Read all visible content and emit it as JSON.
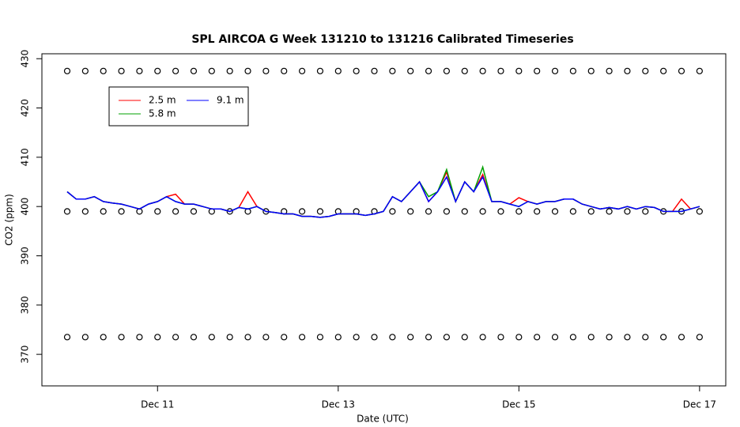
{
  "chart_data": {
    "type": "line",
    "title": "SPL AIRCOA G  Week 131210 to 131216  Calibrated Timeseries",
    "xlabel": "Date (UTC)",
    "ylabel": "CO2 (ppm)",
    "xlim": [
      9.72,
      17.29
    ],
    "ylim": [
      363.6,
      431
    ],
    "xticks": [
      {
        "value": 11,
        "label": "Dec 11"
      },
      {
        "value": 13,
        "label": "Dec 13"
      },
      {
        "value": 15,
        "label": "Dec 15"
      },
      {
        "value": 17,
        "label": "Dec 17"
      }
    ],
    "yticks": [
      370,
      380,
      390,
      400,
      410,
      420,
      430
    ],
    "x": [
      10.0,
      10.1,
      10.2,
      10.3,
      10.4,
      10.5,
      10.6,
      10.7,
      10.8,
      10.9,
      11.0,
      11.1,
      11.2,
      11.3,
      11.4,
      11.5,
      11.6,
      11.7,
      11.8,
      11.9,
      12.0,
      12.1,
      12.2,
      12.3,
      12.4,
      12.5,
      12.6,
      12.7,
      12.8,
      12.9,
      13.0,
      13.1,
      13.2,
      13.3,
      13.4,
      13.5,
      13.6,
      13.7,
      13.8,
      13.9,
      14.0,
      14.1,
      14.2,
      14.3,
      14.4,
      14.5,
      14.6,
      14.7,
      14.8,
      14.9,
      15.0,
      15.1,
      15.2,
      15.3,
      15.4,
      15.5,
      15.6,
      15.7,
      15.8,
      15.9,
      16.0,
      16.1,
      16.2,
      16.3,
      16.4,
      16.5,
      16.6,
      16.7,
      16.8,
      16.9,
      17.0
    ],
    "series": [
      {
        "name": "2.5 m",
        "color": "#ff0000",
        "values": [
          403,
          401.5,
          401.5,
          402,
          401,
          400.7,
          400.5,
          400,
          399.5,
          400.5,
          401,
          402,
          402.5,
          400.5,
          400.5,
          400,
          399.5,
          399.5,
          399,
          399.8,
          403,
          400,
          399,
          398.8,
          398.5,
          398.5,
          398,
          398,
          397.8,
          398,
          398.5,
          398.5,
          398.5,
          398.2,
          398.5,
          399,
          402,
          401,
          403,
          405,
          401,
          403,
          407,
          401,
          405,
          403,
          406.5,
          401,
          401,
          400.5,
          401.8,
          401,
          400.5,
          401,
          401,
          401.5,
          401.5,
          400.5,
          400,
          399.5,
          399.8,
          399.5,
          400,
          399.5,
          400,
          399.8,
          399,
          399,
          401.5,
          399.5,
          400
        ]
      },
      {
        "name": "5.8 m",
        "color": "#00a000",
        "values": [
          403,
          401.5,
          401.5,
          402,
          401,
          400.7,
          400.5,
          400,
          399.5,
          400.5,
          401,
          402,
          401,
          400.5,
          400.5,
          400,
          399.5,
          399.5,
          399,
          399.8,
          399.5,
          400,
          399,
          398.8,
          398.5,
          398.5,
          398,
          398,
          397.8,
          398,
          398.5,
          398.5,
          398.5,
          398.2,
          398.5,
          399,
          402,
          401,
          403,
          405,
          402,
          403,
          407.5,
          401,
          405,
          403,
          408,
          401,
          401,
          400.5,
          400,
          401,
          400.5,
          401,
          401,
          401.5,
          401.5,
          400.5,
          400,
          399.5,
          399.8,
          399.5,
          400,
          399.5,
          400,
          399.8,
          399,
          399,
          399,
          399.5,
          400
        ]
      },
      {
        "name": "9.1 m",
        "color": "#0000ff",
        "values": [
          403,
          401.5,
          401.5,
          402,
          401,
          400.7,
          400.5,
          400,
          399.5,
          400.5,
          401,
          402,
          401,
          400.5,
          400.5,
          400,
          399.5,
          399.5,
          399,
          399.8,
          399.5,
          400,
          399,
          398.8,
          398.5,
          398.5,
          398,
          398,
          397.8,
          398,
          398.5,
          398.5,
          398.5,
          398.2,
          398.5,
          399,
          402,
          401,
          403,
          405,
          401,
          403,
          406,
          401,
          405,
          403,
          406,
          401,
          401,
          400.5,
          400,
          401,
          400.5,
          401,
          401,
          401.5,
          401.5,
          400.5,
          400,
          399.5,
          399.8,
          399.5,
          400,
          399.5,
          400,
          399.8,
          399,
          399,
          399,
          399.5,
          400
        ]
      }
    ],
    "calibration_x": [
      10.0,
      10.2,
      10.4,
      10.6,
      10.8,
      11.0,
      11.2,
      11.4,
      11.6,
      11.8,
      12.0,
      12.2,
      12.4,
      12.6,
      12.8,
      13.0,
      13.2,
      13.4,
      13.6,
      13.8,
      14.0,
      14.2,
      14.4,
      14.6,
      14.8,
      15.0,
      15.2,
      15.4,
      15.6,
      15.8,
      16.0,
      16.2,
      16.4,
      16.6,
      16.8,
      17.0
    ],
    "calibration": [
      {
        "values": [
          427.5,
          427.5,
          427.5,
          427.5,
          427.5,
          427.5,
          427.5,
          427.5,
          427.5,
          427.5,
          427.5,
          427.5,
          427.5,
          427.5,
          427.5,
          427.5,
          427.5,
          427.5,
          427.5,
          427.5,
          427.5,
          427.5,
          427.5,
          427.5,
          427.5,
          427.5,
          427.5,
          427.5,
          427.5,
          427.5,
          427.5,
          427.5,
          427.5,
          427.5,
          427.5,
          427.5
        ]
      },
      {
        "values": [
          399,
          399,
          399,
          399,
          399,
          399,
          399,
          399,
          399,
          399,
          399,
          399,
          399,
          399,
          399,
          399,
          399,
          399,
          399,
          399,
          399,
          399,
          399,
          399,
          399,
          399,
          399,
          399,
          399,
          399,
          399,
          399,
          399,
          399,
          399,
          399
        ]
      },
      {
        "values": [
          373.5,
          373.5,
          373.5,
          373.5,
          373.5,
          373.5,
          373.5,
          373.5,
          373.5,
          373.5,
          373.5,
          373.5,
          373.5,
          373.5,
          373.5,
          373.5,
          373.5,
          373.5,
          373.5,
          373.5,
          373.5,
          373.5,
          373.5,
          373.5,
          373.5,
          373.5,
          373.5,
          373.5,
          373.5,
          373.5,
          373.5,
          373.5,
          373.5,
          373.5,
          373.5,
          373.5
        ]
      }
    ]
  }
}
